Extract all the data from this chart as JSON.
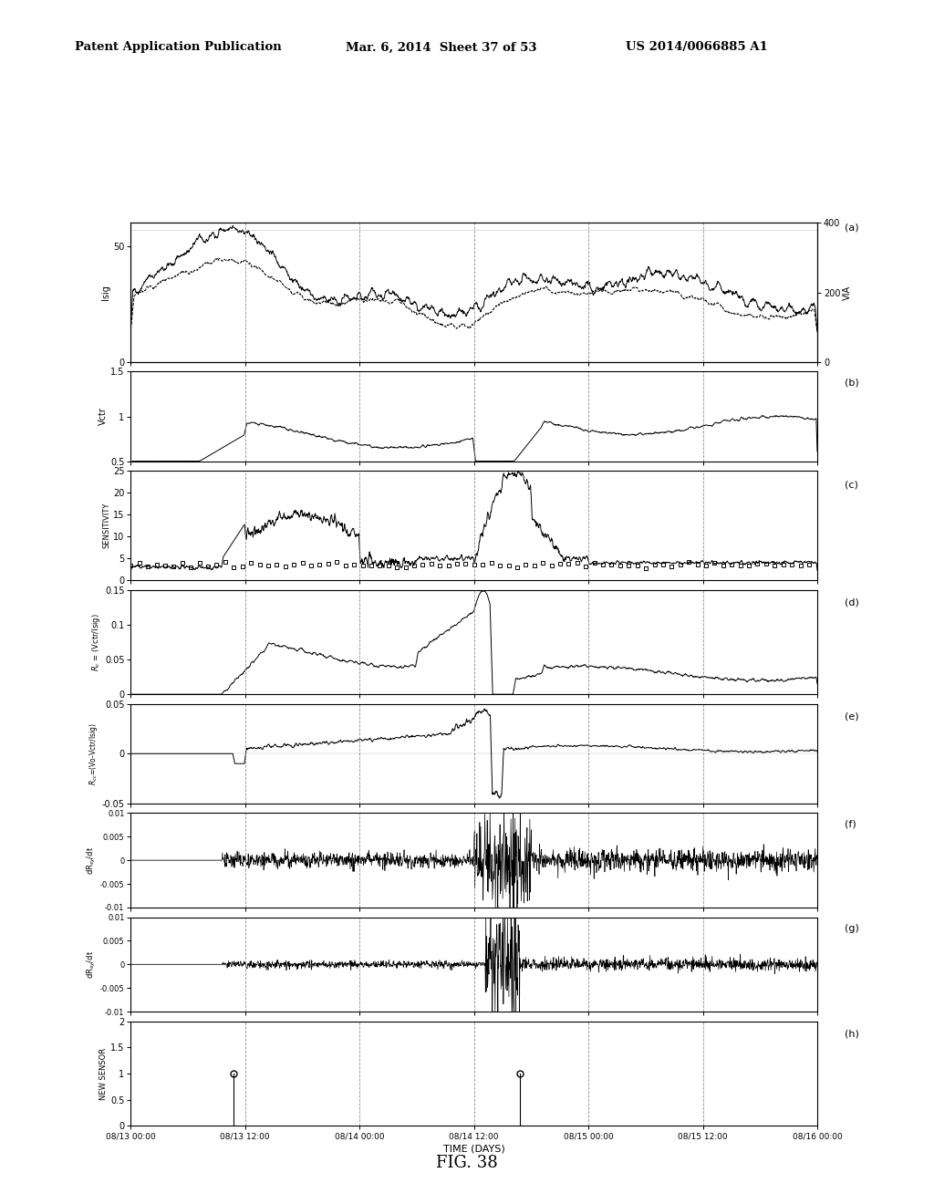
{
  "header_left": "Patent Application Publication",
  "header_mid": "Mar. 6, 2014  Sheet 37 of 53",
  "header_right": "US 2014/0066885 A1",
  "figure_label": "FIG. 38",
  "xlabel": "TIME (DAYS)",
  "x_tick_labels": [
    "08/13 00:00",
    "08/13 12:00",
    "08/14 00:00",
    "08/14 12:00",
    "08/15 00:00",
    "08/15 12:00",
    "08/16 00:00"
  ],
  "bg_color": "#ffffff",
  "line_color": "#000000"
}
